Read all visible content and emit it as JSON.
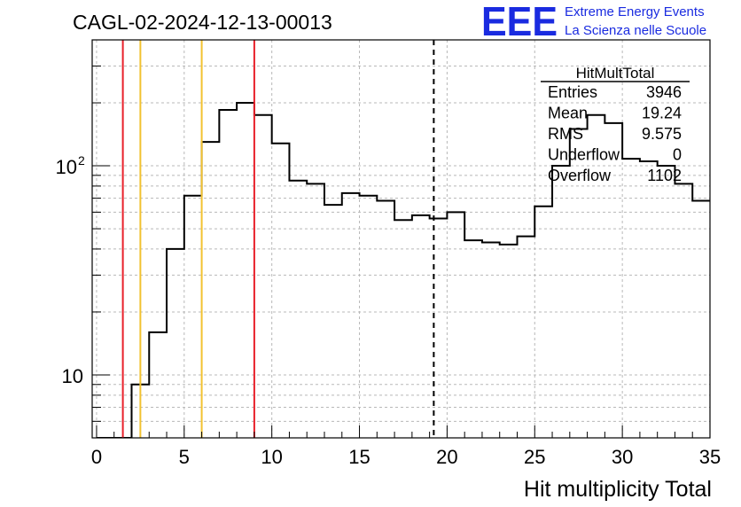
{
  "chart_data": {
    "type": "histogram",
    "title": "CAGL-02-2024-12-13-00013",
    "xlabel": "Hit multiplicity Total",
    "ylabel": "",
    "xlim": [
      -0.25,
      35
    ],
    "ylim": [
      5,
      400
    ],
    "y_scale": "log",
    "grid": true,
    "x_ticks": [
      "0",
      "5",
      "10",
      "15",
      "20",
      "25",
      "30",
      "35"
    ],
    "y_ticks": [
      {
        "value": 10,
        "label": "10"
      },
      {
        "value": 100,
        "label": "10",
        "exponent": "2"
      }
    ],
    "bin_edges": [
      0,
      1,
      2,
      3,
      4,
      5,
      6,
      7,
      8,
      9,
      10,
      11,
      12,
      13,
      14,
      15,
      16,
      17,
      18,
      19,
      20,
      21,
      22,
      23,
      24,
      25,
      26,
      27,
      28,
      29,
      30,
      31,
      32,
      33,
      34,
      35
    ],
    "counts": [
      0,
      0,
      9,
      16,
      40,
      72,
      130,
      185,
      200,
      175,
      128,
      85,
      82,
      65,
      74,
      72,
      68,
      55,
      58,
      56,
      60,
      44,
      43,
      42,
      46,
      64,
      100,
      150,
      175,
      160,
      108,
      105,
      100,
      82,
      68
    ],
    "vertical_lines": [
      {
        "x": 1.5,
        "color": "#e8202a",
        "style": "solid"
      },
      {
        "x": 2.5,
        "color": "#f2c230",
        "style": "solid"
      },
      {
        "x": 6.0,
        "color": "#f2c230",
        "style": "solid"
      },
      {
        "x": 9.0,
        "color": "#e8202a",
        "style": "solid"
      },
      {
        "x": 19.24,
        "color": "#000000",
        "style": "dashed"
      }
    ]
  },
  "stats_box": {
    "title": "HitMultTotal",
    "rows": [
      {
        "label": "Entries",
        "value": "3946"
      },
      {
        "label": "Mean",
        "value": "19.24"
      },
      {
        "label": "RMS",
        "value": "9.575"
      },
      {
        "label": "Underflow",
        "value": "0"
      },
      {
        "label": "Overflow",
        "value": "1102"
      }
    ]
  },
  "logo": {
    "mark": "EEE",
    "line1": "Extreme Energy Events",
    "line2": "La Scienza nelle Scuole",
    "color": "#1a2be0"
  }
}
